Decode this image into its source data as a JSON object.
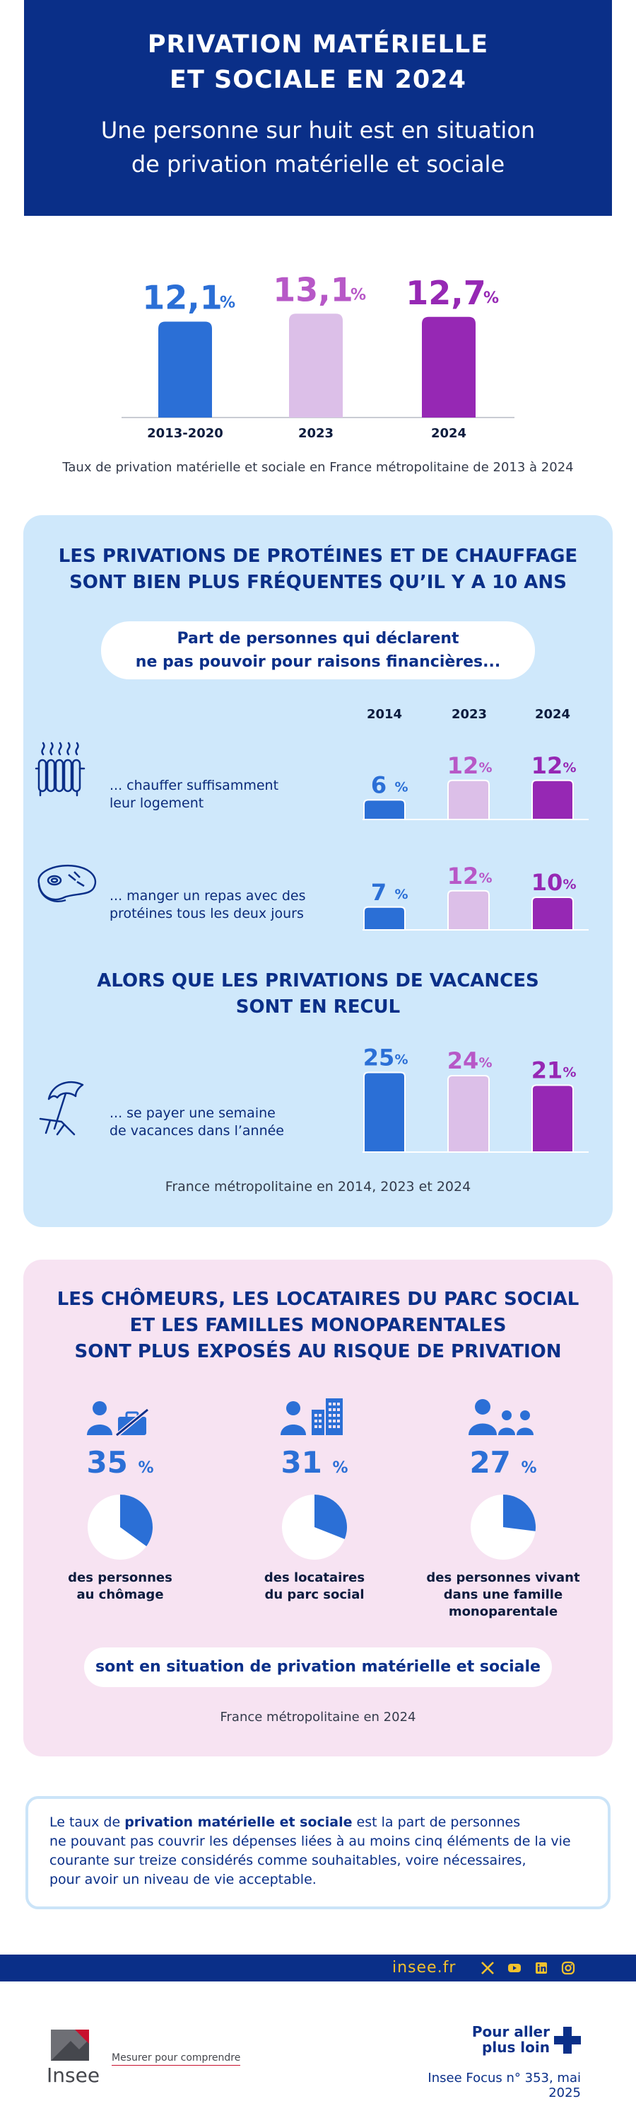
{
  "header": {
    "title_line1": "PRIVATION MATÉRIELLE",
    "title_line2": "ET SOCIALE EN 2024",
    "subtitle_line1": "Une personne sur huit est en situation",
    "subtitle_line2": "de privation matérielle et sociale"
  },
  "chart_data": [
    {
      "type": "bar",
      "title": "",
      "categories": [
        "2013-2020",
        "2023",
        "2024"
      ],
      "values": [
        12.1,
        13.1,
        12.7
      ],
      "value_labels": [
        "12,1",
        "13,1",
        "12,7"
      ],
      "unit": "%",
      "colors": [
        "#2b6fd6",
        "#dcbfe8",
        "#9628b4"
      ],
      "caption": "Taux de privation matérielle et sociale en France métropolitaine de 2013 à 2024"
    },
    {
      "type": "bar",
      "title": "LES PRIVATIONS DE PROTÉINES ET DE CHAUFFAGE SONT BIEN PLUS FRÉQUENTES QU’IL Y A 10 ANS",
      "categories": [
        "2014",
        "2023",
        "2024"
      ],
      "unit": "%",
      "colors": [
        "#2b6fd6",
        "#dcbfe8",
        "#9628b4"
      ],
      "series": [
        {
          "name": "... chauffer suffisamment leur logement",
          "values": [
            6,
            12,
            12
          ]
        },
        {
          "name": "... manger un repas avec des protéines tous les deux jours",
          "values": [
            7,
            12,
            10
          ]
        }
      ]
    },
    {
      "type": "bar",
      "title": "ALORS QUE LES PRIVATIONS DE VACANCES SONT EN RECUL",
      "categories": [
        "2014",
        "2023",
        "2024"
      ],
      "unit": "%",
      "colors": [
        "#2b6fd6",
        "#dcbfe8",
        "#9628b4"
      ],
      "series": [
        {
          "name": "... se payer une semaine de vacances dans l’année",
          "values": [
            25,
            24,
            21
          ]
        }
      ],
      "caption": "France métropolitaine en 2014, 2023 et 2024"
    },
    {
      "type": "pie",
      "title": "LES CHÔMEURS, LES LOCATAIRES DU PARC SOCIAL ET LES FAMILLES MONOPARENTALES SONT PLUS EXPOSÉS AU RISQUE DE PRIVATION",
      "categories": [
        "des personnes au chômage",
        "des locataires du parc social",
        "des personnes vivant dans une famille monoparentale"
      ],
      "values": [
        35,
        31,
        27
      ],
      "unit": "%",
      "caption": "France métropolitaine en 2024"
    }
  ],
  "top_caption": "Taux de privation matérielle et sociale en France métropolitaine de 2013 à 2024",
  "blue_panel": {
    "title_line1": "LES PRIVATIONS DE PROTÉINES ET DE CHAUFFAGE",
    "title_line2": "SONT BIEN PLUS FRÉQUENTES QU’IL Y A 10 ANS",
    "pill_line1": "Part de personnes qui déclarent",
    "pill_line2": "ne pas pouvoir pour raisons financières...",
    "years": [
      "2014",
      "2023",
      "2024"
    ],
    "row1_line1": "... chauffer suffisamment",
    "row1_line2": "leur logement",
    "row2_line1": "... manger un repas avec des",
    "row2_line2": "protéines tous les deux jours",
    "title2_line1": "ALORS QUE LES PRIVATIONS DE VACANCES",
    "title2_line2": "SONT EN RECUL",
    "row3_line1": "... se payer une semaine",
    "row3_line2": "de vacances dans l’année",
    "caption": "France métropolitaine en 2014, 2023 et 2024"
  },
  "pink_panel": {
    "title_line1": "LES CHÔMEURS, LES LOCATAIRES DU PARC SOCIAL",
    "title_line2": "ET LES FAMILLES MONOPARENTALES",
    "title_line3": "SONT PLUS EXPOSÉS AU RISQUE DE PRIVATION",
    "stats": [
      {
        "value": "35",
        "label_line1": "des personnes",
        "label_line2": "au chômage",
        "label_line3": ""
      },
      {
        "value": "31",
        "label_line1": "des locataires",
        "label_line2": "du parc social",
        "label_line3": ""
      },
      {
        "value": "27",
        "label_line1": "des personnes vivant",
        "label_line2": "dans une famille",
        "label_line3": "monoparentale"
      }
    ],
    "percent_sign": "%",
    "pill": "sont en situation de privation matérielle et sociale",
    "caption": "France métropolitaine en 2024"
  },
  "definition": {
    "prefix": "Le taux de ",
    "bold": "privation matérielle et sociale",
    "line1_rest": " est la part de personnes",
    "line2": "ne pouvant pas couvrir les dépenses liées à au moins cinq éléments de la vie",
    "line3": "courante sur treize considérés comme souhaitables, voire nécessaires,",
    "line4": "pour avoir un niveau de vie acceptable."
  },
  "footer": {
    "site": "insee.fr",
    "logo_text": "Insee",
    "slogan": "Mesurer pour comprendre",
    "more_line1": "Pour aller",
    "more_line2": "plus loin",
    "source": "Insee Focus n° 353, mai 2025"
  }
}
